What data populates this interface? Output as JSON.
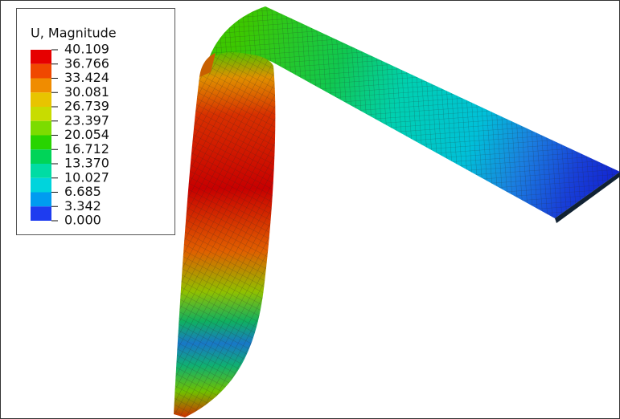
{
  "legend": {
    "title": "U, Magnitude",
    "labels": [
      "40.109",
      "36.766",
      "33.424",
      "30.081",
      "26.739",
      "23.397",
      "20.054",
      "16.712",
      "13.370",
      "10.027",
      "6.685",
      "3.342",
      "0.000"
    ],
    "colors": [
      "#e60000",
      "#f04800",
      "#f08c00",
      "#e8c400",
      "#c8dc00",
      "#7cdc00",
      "#28d400",
      "#00d458",
      "#00dca4",
      "#00d4dc",
      "#009cf0",
      "#1e3cf0"
    ]
  }
}
